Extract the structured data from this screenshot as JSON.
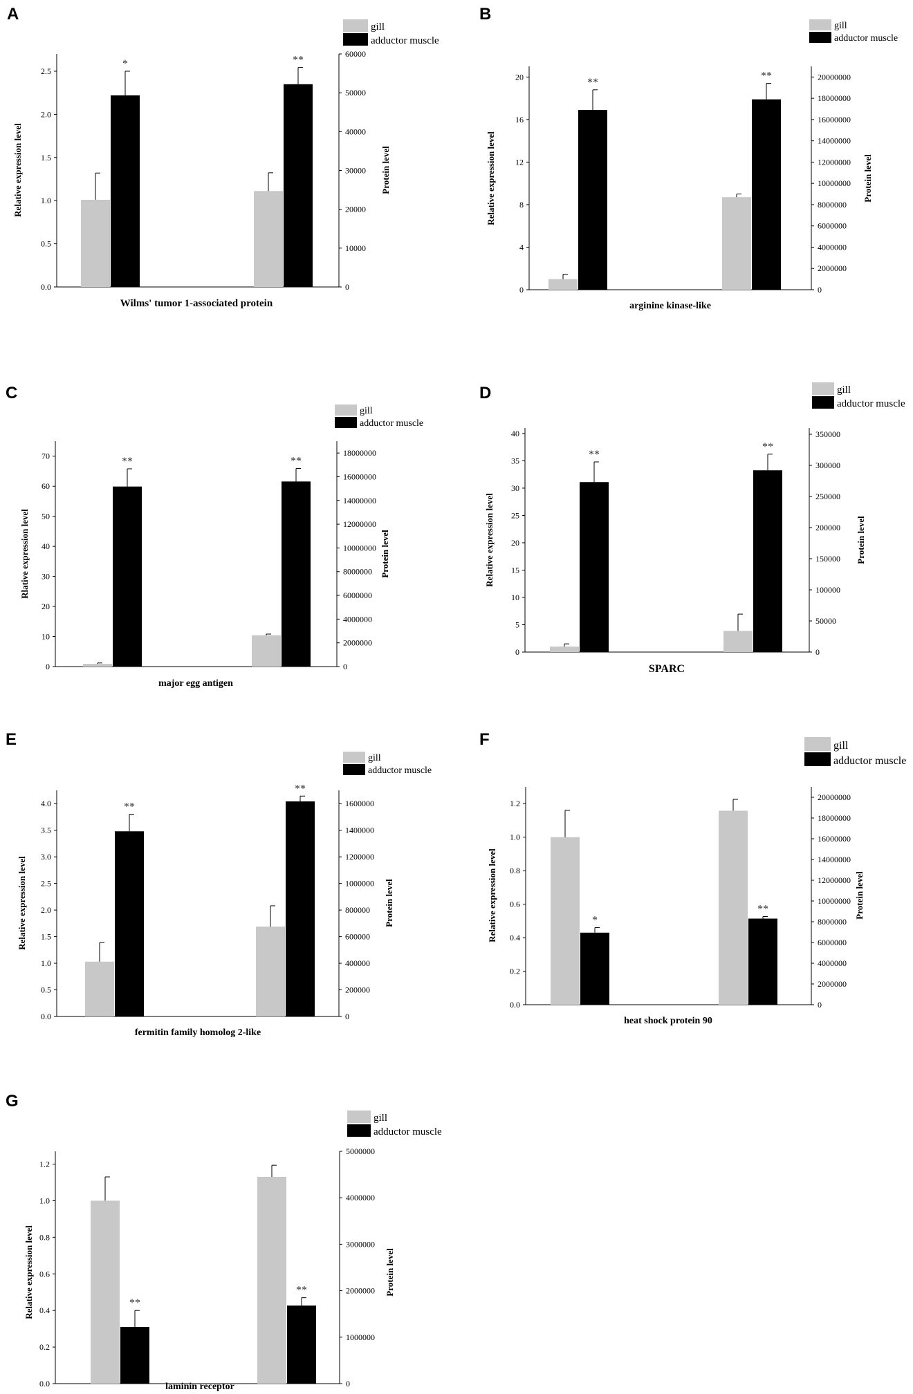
{
  "legend_labels": [
    "gill",
    "adductor muscle"
  ],
  "colors": {
    "gill": "#c8c8c8",
    "muscle": "#000000",
    "axis": "#000000"
  },
  "chart_data": [
    {
      "panel": "A",
      "type": "bar",
      "title": "",
      "xlabel": "Wilms' tumor 1-associated protein",
      "ylabel_left": "Relative expression level",
      "ylabel_right": "Protein level",
      "series": [
        "gill",
        "adductor muscle"
      ],
      "left_axis": {
        "ylim": [
          0,
          2.7
        ],
        "ticks": [
          "0.0",
          "0.5",
          "1.0",
          "1.5",
          "2.0",
          "2.5"
        ],
        "tick_values": [
          0,
          0.5,
          1.0,
          1.5,
          2.0,
          2.5
        ]
      },
      "right_axis": {
        "ylim": [
          0,
          60000
        ],
        "ticks": [
          "0",
          "10000",
          "20000",
          "30000",
          "40000",
          "50000",
          "60000"
        ],
        "tick_values": [
          0,
          10000,
          20000,
          30000,
          40000,
          50000,
          60000
        ]
      },
      "groups": [
        {
          "axis": "left",
          "bars": [
            {
              "series": "gill",
              "value": 1.01,
              "error": 0.31,
              "sig": ""
            },
            {
              "series": "adductor muscle",
              "value": 2.22,
              "error": 0.28,
              "sig": "*"
            }
          ]
        },
        {
          "axis": "right",
          "bars": [
            {
              "series": "gill",
              "value": 24700,
              "error": 4700,
              "sig": ""
            },
            {
              "series": "adductor muscle",
              "value": 52200,
              "error": 4300,
              "sig": "**"
            }
          ]
        }
      ]
    },
    {
      "panel": "B",
      "type": "bar",
      "title": "",
      "xlabel": "arginine kinase-like",
      "ylabel_left": "Relative expression level",
      "ylabel_right": "Protein level",
      "series": [
        "gill",
        "adductor muscle"
      ],
      "left_axis": {
        "ylim": [
          0,
          21
        ],
        "ticks": [
          "0",
          "4",
          "8",
          "12",
          "16",
          "20"
        ],
        "tick_values": [
          0,
          4,
          8,
          12,
          16,
          20
        ]
      },
      "right_axis": {
        "ylim": [
          0,
          21000000
        ],
        "ticks": [
          "0",
          "2000000",
          "4000000",
          "6000000",
          "8000000",
          "10000000",
          "12000000",
          "14000000",
          "16000000",
          "18000000",
          "20000000"
        ],
        "tick_values": [
          0,
          2000000,
          4000000,
          6000000,
          8000000,
          10000000,
          12000000,
          14000000,
          16000000,
          18000000,
          20000000
        ]
      },
      "groups": [
        {
          "axis": "left",
          "bars": [
            {
              "series": "gill",
              "value": 1.0,
              "error": 0.45,
              "sig": ""
            },
            {
              "series": "adductor muscle",
              "value": 16.9,
              "error": 1.9,
              "sig": "**"
            }
          ]
        },
        {
          "axis": "right",
          "bars": [
            {
              "series": "gill",
              "value": 8700000,
              "error": 300000,
              "sig": ""
            },
            {
              "series": "adductor muscle",
              "value": 17900000,
              "error": 1500000,
              "sig": "**"
            }
          ]
        }
      ]
    },
    {
      "panel": "C",
      "type": "bar",
      "title": "",
      "xlabel": "major egg antigen",
      "ylabel_left": "Rlative expression level",
      "ylabel_right": "Protein level",
      "series": [
        "gill",
        "adductor muscle"
      ],
      "left_axis": {
        "ylim": [
          0,
          75
        ],
        "ticks": [
          "0",
          "10",
          "20",
          "30",
          "40",
          "50",
          "60",
          "70"
        ],
        "tick_values": [
          0,
          10,
          20,
          30,
          40,
          50,
          60,
          70
        ]
      },
      "right_axis": {
        "ylim": [
          0,
          19000000
        ],
        "ticks": [
          "0",
          "2000000",
          "4000000",
          "6000000",
          "8000000",
          "10000000",
          "12000000",
          "14000000",
          "16000000",
          "18000000"
        ],
        "tick_values": [
          0,
          2000000,
          4000000,
          6000000,
          8000000,
          10000000,
          12000000,
          14000000,
          16000000,
          18000000
        ]
      },
      "groups": [
        {
          "axis": "left",
          "bars": [
            {
              "series": "gill",
              "value": 0.9,
              "error": 0.3,
              "sig": ""
            },
            {
              "series": "adductor muscle",
              "value": 59.9,
              "error": 5.9,
              "sig": "**"
            }
          ]
        },
        {
          "axis": "right",
          "bars": [
            {
              "series": "gill",
              "value": 2640000,
              "error": 100000,
              "sig": ""
            },
            {
              "series": "adductor muscle",
              "value": 15600000,
              "error": 1100000,
              "sig": "**"
            }
          ]
        }
      ]
    },
    {
      "panel": "D",
      "type": "bar",
      "title": "",
      "xlabel": "SPARC",
      "ylabel_left": "Relative expression level",
      "ylabel_right": "Protein level",
      "series": [
        "gill",
        "adductor muscle"
      ],
      "left_axis": {
        "ylim": [
          0,
          41
        ],
        "ticks": [
          "0",
          "5",
          "10",
          "15",
          "20",
          "25",
          "30",
          "35",
          "40"
        ],
        "tick_values": [
          0,
          5,
          10,
          15,
          20,
          25,
          30,
          35,
          40
        ]
      },
      "right_axis": {
        "ylim": [
          0,
          360000
        ],
        "ticks": [
          "0",
          "50000",
          "100000",
          "150000",
          "200000",
          "250000",
          "300000",
          "350000"
        ],
        "tick_values": [
          0,
          50000,
          100000,
          150000,
          200000,
          250000,
          300000,
          350000
        ]
      },
      "groups": [
        {
          "axis": "left",
          "bars": [
            {
              "series": "gill",
              "value": 1.0,
              "error": 0.5,
              "sig": ""
            },
            {
              "series": "adductor muscle",
              "value": 31.1,
              "error": 3.7,
              "sig": "**"
            }
          ]
        },
        {
          "axis": "right",
          "bars": [
            {
              "series": "gill",
              "value": 34000,
              "error": 27000,
              "sig": ""
            },
            {
              "series": "adductor muscle",
              "value": 292000,
              "error": 26000,
              "sig": "**"
            }
          ]
        }
      ]
    },
    {
      "panel": "E",
      "type": "bar",
      "title": "",
      "xlabel": "fermitin family homolog 2-like",
      "ylabel_left": "Relative expression level",
      "ylabel_right": "Protein level",
      "series": [
        "gill",
        "adductor muscle"
      ],
      "left_axis": {
        "ylim": [
          0,
          4.25
        ],
        "ticks": [
          "0.0",
          "0.5",
          "1.0",
          "1.5",
          "2.0",
          "2.5",
          "3.0",
          "3.5",
          "4.0"
        ],
        "tick_values": [
          0,
          0.5,
          1.0,
          1.5,
          2.0,
          2.5,
          3.0,
          3.5,
          4.0
        ]
      },
      "right_axis": {
        "ylim": [
          0,
          1700000
        ],
        "ticks": [
          "0",
          "200000",
          "400000",
          "600000",
          "800000",
          "1000000",
          "1200000",
          "1400000",
          "1600000"
        ],
        "tick_values": [
          0,
          200000,
          400000,
          600000,
          800000,
          1000000,
          1200000,
          1400000,
          1600000
        ]
      },
      "groups": [
        {
          "axis": "left",
          "bars": [
            {
              "series": "gill",
              "value": 1.03,
              "error": 0.36,
              "sig": ""
            },
            {
              "series": "adductor muscle",
              "value": 3.48,
              "error": 0.32,
              "sig": "**"
            }
          ]
        },
        {
          "axis": "right",
          "bars": [
            {
              "series": "gill",
              "value": 676000,
              "error": 156000,
              "sig": ""
            },
            {
              "series": "adductor muscle",
              "value": 1617000,
              "error": 40000,
              "sig": "**"
            }
          ]
        }
      ]
    },
    {
      "panel": "F",
      "type": "bar",
      "title": "",
      "xlabel": "heat shock protein 90",
      "ylabel_left": "Relative expression level",
      "ylabel_right": "Protein level",
      "series": [
        "gill",
        "adductor muscle"
      ],
      "left_axis": {
        "ylim": [
          0,
          1.3
        ],
        "ticks": [
          "0.0",
          "0.2",
          "0.4",
          "0.6",
          "0.8",
          "1.0",
          "1.2"
        ],
        "tick_values": [
          0,
          0.2,
          0.4,
          0.6,
          0.8,
          1.0,
          1.2
        ]
      },
      "right_axis": {
        "ylim": [
          0,
          21000000
        ],
        "ticks": [
          "0",
          "2000000",
          "4000000",
          "6000000",
          "8000000",
          "10000000",
          "12000000",
          "14000000",
          "16000000",
          "18000000",
          "20000000"
        ],
        "tick_values": [
          0,
          2000000,
          4000000,
          6000000,
          8000000,
          10000000,
          12000000,
          14000000,
          16000000,
          18000000,
          20000000
        ]
      },
      "groups": [
        {
          "axis": "left",
          "bars": [
            {
              "series": "gill",
              "value": 1.0,
              "error": 0.16,
              "sig": ""
            },
            {
              "series": "adductor muscle",
              "value": 0.43,
              "error": 0.03,
              "sig": "*"
            }
          ]
        },
        {
          "axis": "right",
          "bars": [
            {
              "series": "gill",
              "value": 18700000,
              "error": 1100000,
              "sig": ""
            },
            {
              "series": "adductor muscle",
              "value": 8300000,
              "error": 200000,
              "sig": "**"
            }
          ]
        }
      ]
    },
    {
      "panel": "G",
      "type": "bar",
      "title": "",
      "xlabel": "laminin receptor",
      "ylabel_left": "Relative expression level",
      "ylabel_right": "Protein level",
      "series": [
        "gill",
        "adductor muscle"
      ],
      "left_axis": {
        "ylim": [
          0,
          1.27
        ],
        "ticks": [
          "0.0",
          "0.2",
          "0.4",
          "0.6",
          "0.8",
          "1.0",
          "1.2"
        ],
        "tick_values": [
          0,
          0.2,
          0.4,
          0.6,
          0.8,
          1.0,
          1.2
        ]
      },
      "right_axis": {
        "ylim": [
          0,
          5000000
        ],
        "ticks": [
          "0",
          "1000000",
          "2000000",
          "3000000",
          "4000000",
          "5000000"
        ],
        "tick_values": [
          0,
          1000000,
          2000000,
          3000000,
          4000000,
          5000000
        ]
      },
      "groups": [
        {
          "axis": "left",
          "bars": [
            {
              "series": "gill",
              "value": 1.0,
              "error": 0.13,
              "sig": ""
            },
            {
              "series": "adductor muscle",
              "value": 0.31,
              "error": 0.09,
              "sig": "**"
            }
          ]
        },
        {
          "axis": "right",
          "bars": [
            {
              "series": "gill",
              "value": 4450000,
              "error": 250000,
              "sig": ""
            },
            {
              "series": "adductor muscle",
              "value": 1680000,
              "error": 170000,
              "sig": "**"
            }
          ]
        }
      ]
    }
  ]
}
